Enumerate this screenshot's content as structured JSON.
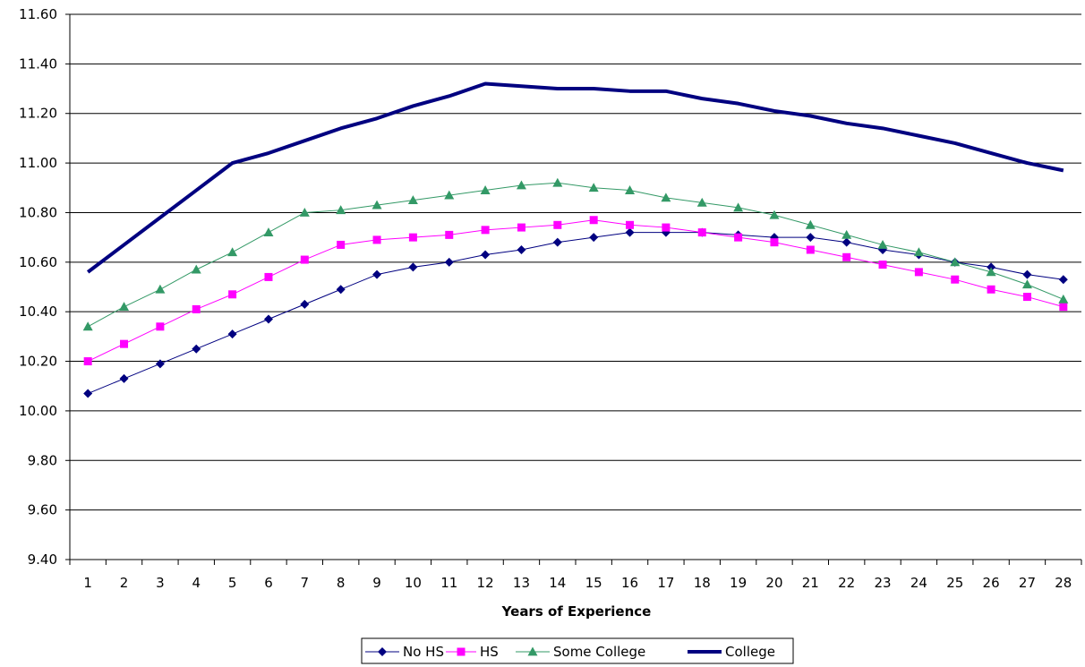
{
  "chart_data": {
    "type": "line",
    "title": "",
    "xlabel": "Years of Experience",
    "ylabel": "",
    "x": [
      1,
      2,
      3,
      4,
      5,
      6,
      7,
      8,
      9,
      10,
      11,
      12,
      13,
      14,
      15,
      16,
      17,
      18,
      19,
      20,
      21,
      22,
      23,
      24,
      25,
      26,
      27,
      28
    ],
    "ylim": [
      9.4,
      11.6
    ],
    "yticks": [
      "9.40",
      "9.60",
      "9.80",
      "10.00",
      "10.20",
      "10.40",
      "10.60",
      "10.80",
      "11.00",
      "11.20",
      "11.40",
      "11.60"
    ],
    "grid": true,
    "legend_position": "bottom",
    "series": [
      {
        "name": "No HS",
        "color": "#000080",
        "marker": "diamond",
        "values": [
          10.07,
          10.13,
          10.19,
          10.25,
          10.31,
          10.37,
          10.43,
          10.49,
          10.55,
          10.58,
          10.6,
          10.63,
          10.65,
          10.68,
          10.7,
          10.72,
          10.72,
          10.72,
          10.71,
          10.7,
          10.7,
          10.68,
          10.65,
          10.63,
          10.6,
          10.58,
          10.55,
          10.53
        ]
      },
      {
        "name": "HS",
        "color": "#ff00ff",
        "marker": "square",
        "values": [
          10.2,
          10.27,
          10.34,
          10.41,
          10.47,
          10.54,
          10.61,
          10.67,
          10.69,
          10.7,
          10.71,
          10.73,
          10.74,
          10.75,
          10.77,
          10.75,
          10.74,
          10.72,
          10.7,
          10.68,
          10.65,
          10.62,
          10.59,
          10.56,
          10.53,
          10.49,
          10.46,
          10.42
        ]
      },
      {
        "name": "Some College",
        "color": "#339966",
        "marker": "triangle",
        "values": [
          10.34,
          10.42,
          10.49,
          10.57,
          10.64,
          10.72,
          10.8,
          10.81,
          10.83,
          10.85,
          10.87,
          10.89,
          10.91,
          10.92,
          10.9,
          10.89,
          10.86,
          10.84,
          10.82,
          10.79,
          10.75,
          10.71,
          10.67,
          10.64,
          10.6,
          10.56,
          10.51,
          10.45
        ]
      },
      {
        "name": "College",
        "color": "#000080",
        "marker": "none",
        "width": 4,
        "values": [
          10.56,
          10.67,
          10.78,
          10.89,
          11.0,
          11.04,
          11.09,
          11.14,
          11.18,
          11.23,
          11.27,
          11.32,
          11.31,
          11.3,
          11.3,
          11.29,
          11.29,
          11.26,
          11.24,
          11.21,
          11.19,
          11.16,
          11.14,
          11.11,
          11.08,
          11.04,
          11.0,
          10.97
        ]
      }
    ]
  }
}
